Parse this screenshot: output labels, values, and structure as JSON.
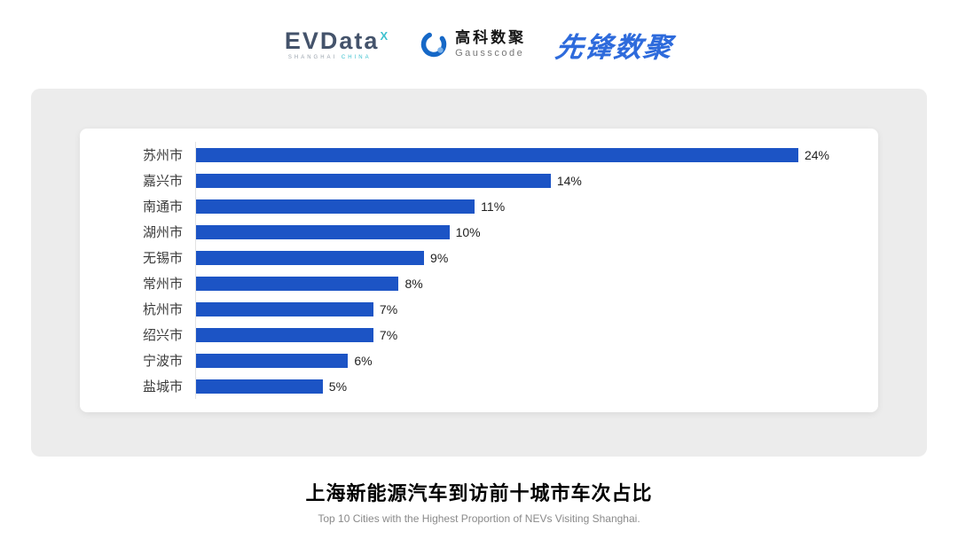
{
  "header": {
    "evdata": {
      "text": "EVData",
      "sup": "X",
      "sub1": "SHANGHAI",
      "sub2": "CHINA"
    },
    "gausscode": {
      "cn": "高科数聚",
      "en": "Gausscode"
    },
    "xianfeng": {
      "text": "先锋数聚"
    }
  },
  "chart_data": {
    "type": "bar",
    "orientation": "horizontal",
    "title": "上海新能源汽车到访前十城市车次占比",
    "subtitle": "Top 10 Cities with the Highest Proportion of  NEVs Visiting Shanghai.",
    "categories": [
      "苏州市",
      "嘉兴市",
      "南通市",
      "湖州市",
      "无锡市",
      "常州市",
      "杭州市",
      "绍兴市",
      "宁波市",
      "盐城市"
    ],
    "values": [
      24,
      14,
      11,
      10,
      9,
      8,
      7,
      7,
      6,
      5
    ],
    "value_labels": [
      "24%",
      "14%",
      "11%",
      "10%",
      "9%",
      "8%",
      "7%",
      "7%",
      "6%",
      "5%"
    ],
    "unit": "%",
    "xlim": [
      0,
      25
    ],
    "bar_color": "#1c54c5",
    "grid": false,
    "legend": false
  }
}
